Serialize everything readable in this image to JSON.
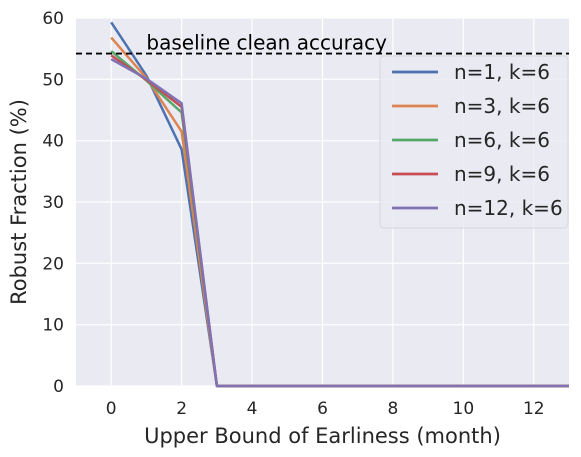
{
  "chart_data": {
    "type": "line",
    "xlabel": "Upper Bound of Earliness (month)",
    "ylabel": "Robust Fraction (%)",
    "xlim": [
      -1,
      13
    ],
    "ylim": [
      0,
      60
    ],
    "xticks": [
      0,
      2,
      4,
      6,
      8,
      10,
      12
    ],
    "yticks": [
      0,
      10,
      20,
      30,
      40,
      50,
      60
    ],
    "grid": true,
    "legend_position": "upper right",
    "x": [
      0,
      1,
      2,
      3,
      4,
      5,
      6,
      7,
      8,
      9,
      10,
      11,
      12,
      13
    ],
    "series": [
      {
        "name": "n=1, k=6",
        "color": "#4c72b0",
        "values": [
          59.3,
          50.6,
          38.6,
          0,
          0,
          0,
          0,
          0,
          0,
          0,
          0,
          0,
          0,
          0
        ]
      },
      {
        "name": "n=3, k=6",
        "color": "#dd8452",
        "values": [
          56.8,
          50.2,
          41.5,
          0,
          0,
          0,
          0,
          0,
          0,
          0,
          0,
          0,
          0,
          0
        ]
      },
      {
        "name": "n=6, k=6",
        "color": "#55a868",
        "values": [
          54.6,
          49.8,
          44.6,
          0,
          0,
          0,
          0,
          0,
          0,
          0,
          0,
          0,
          0,
          0
        ]
      },
      {
        "name": "n=9, k=6",
        "color": "#c44e52",
        "values": [
          53.9,
          49.9,
          45.5,
          0,
          0,
          0,
          0,
          0,
          0,
          0,
          0,
          0,
          0,
          0
        ]
      },
      {
        "name": "n=12, k=6",
        "color": "#8172b3",
        "values": [
          53.3,
          50.1,
          46.1,
          0,
          0,
          0,
          0,
          0,
          0,
          0,
          0,
          0,
          0,
          0
        ]
      }
    ],
    "reference_line": {
      "label": "baseline clean accuracy",
      "value": 54.2,
      "style": "dashed",
      "color": "#000000"
    }
  }
}
